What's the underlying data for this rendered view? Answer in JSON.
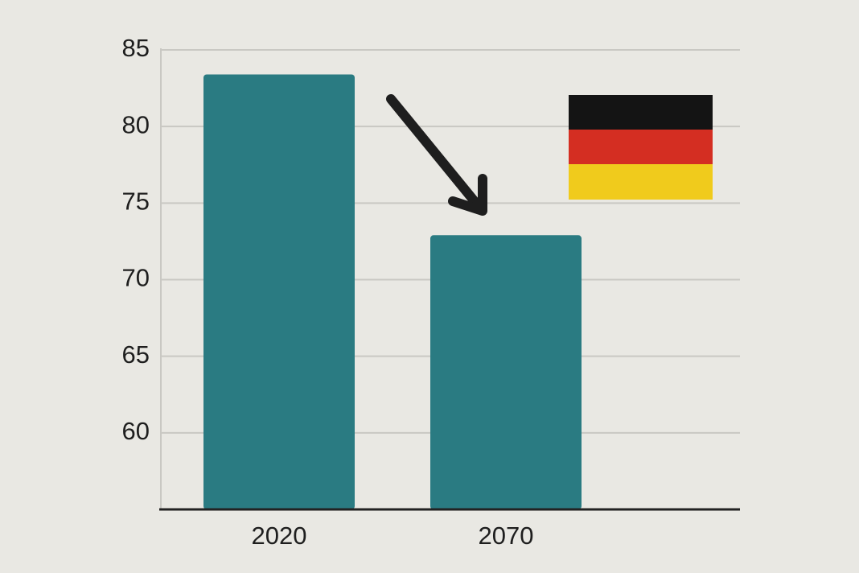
{
  "chart_data": {
    "type": "bar",
    "categories": [
      "2020",
      "2070"
    ],
    "values": [
      83.4,
      72.9
    ],
    "color": "#2a7b82",
    "ylim": [
      55,
      85
    ],
    "yticks": [
      60,
      65,
      70,
      75,
      80,
      85
    ],
    "grid": true
  }
}
